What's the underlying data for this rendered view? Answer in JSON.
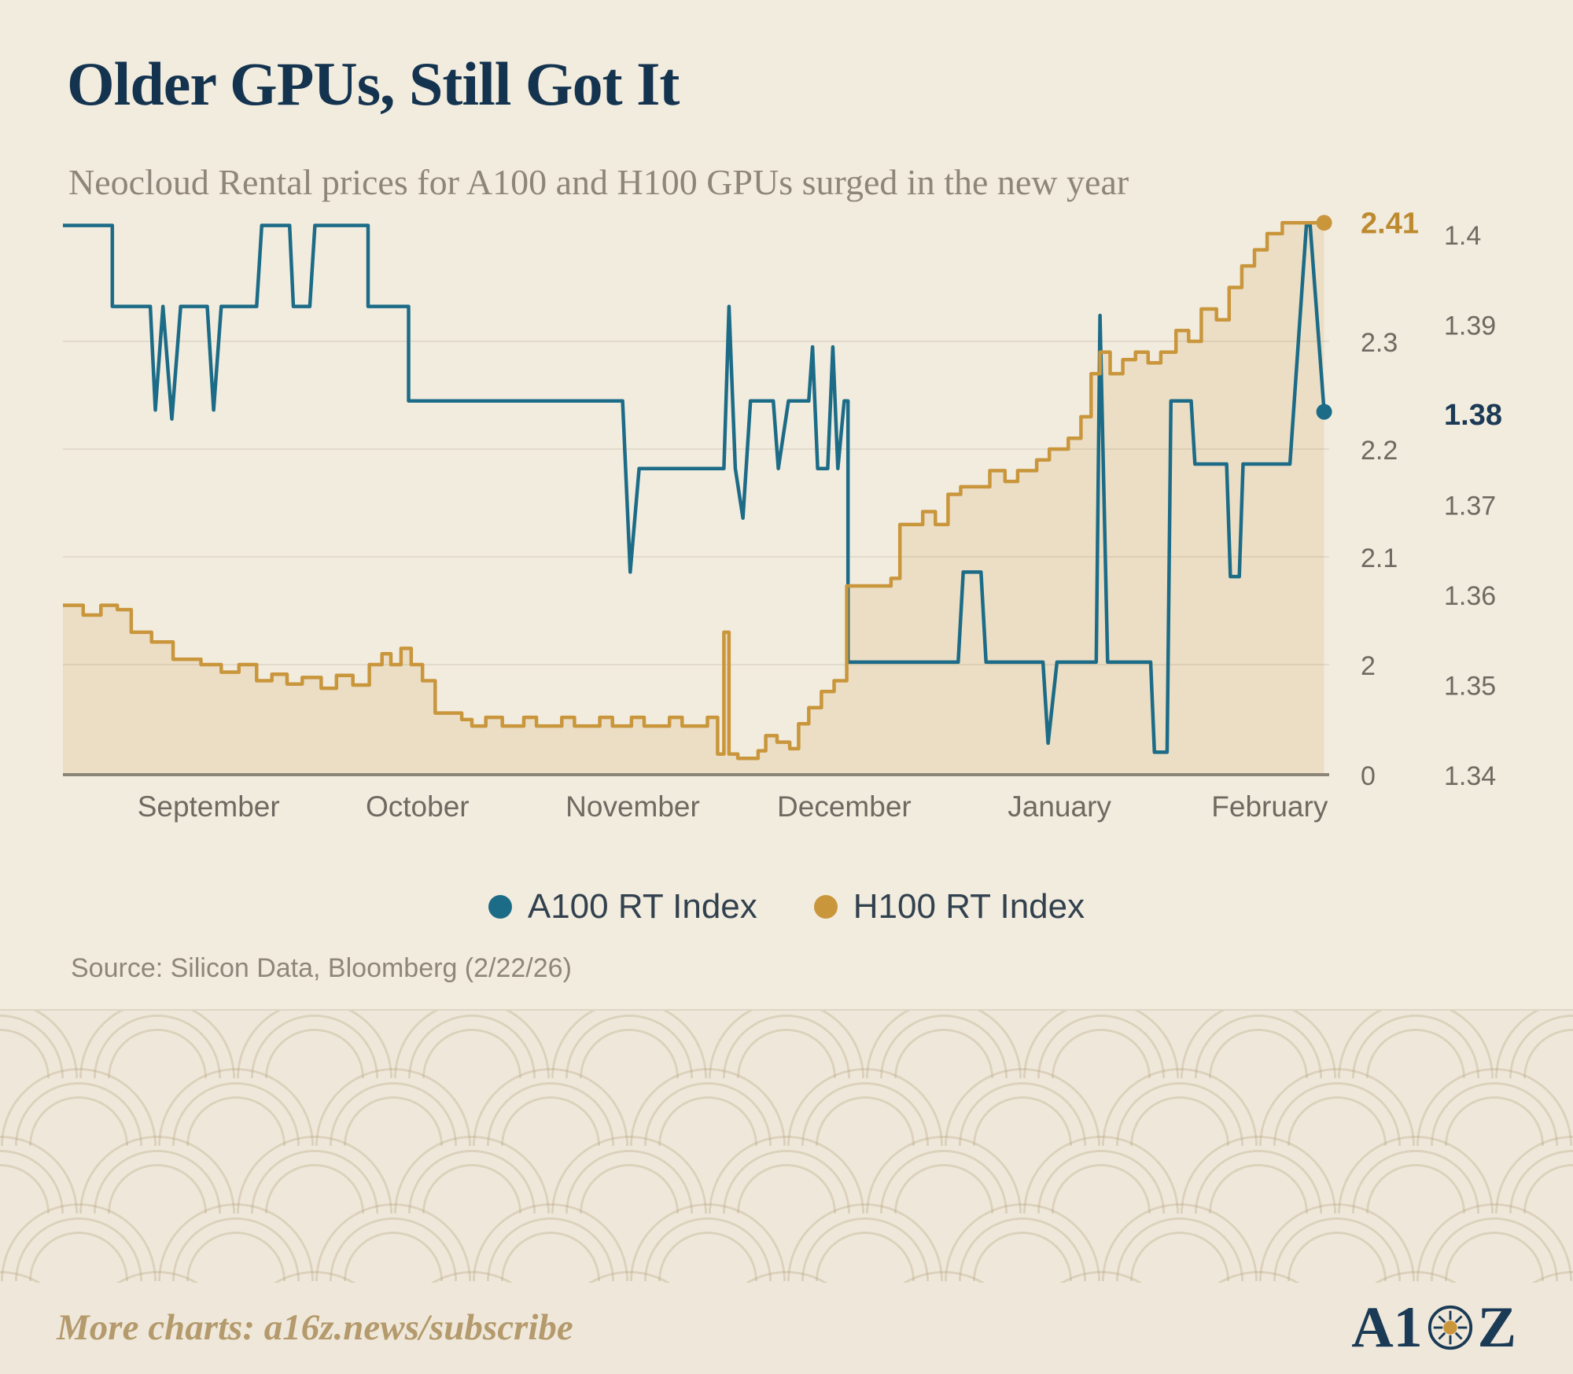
{
  "header": {
    "title": "Older GPUs, Still Got It",
    "subtitle": "Neocloud Rental prices for A100 and H100 GPUs surged in the new year"
  },
  "source": {
    "text": "Source: Silicon Data, Bloomberg (2/22/26)"
  },
  "footer": {
    "cta": "More charts: a16z.news/subscribe",
    "logo": {
      "left": "A1",
      "right": "Z"
    }
  },
  "chart_data": {
    "type": "line",
    "title": "Older GPUs, Still Got It",
    "subtitle": "Neocloud Rental prices for A100 and H100 GPUs surged in the new year",
    "x": {
      "labels": [
        "September",
        "October",
        "November",
        "December",
        "January",
        "February"
      ],
      "positions_pct": [
        11.5,
        28,
        45,
        61.7,
        78.7,
        95.3
      ]
    },
    "axes": {
      "a100": {
        "side": "right-outer",
        "range": [
          1.34,
          1.405
        ],
        "ticks": [
          {
            "v": 1.4,
            "label": "1.4"
          },
          {
            "v": 1.39,
            "label": "1.39"
          },
          {
            "v": 1.38,
            "label": "1.38",
            "highlight": true
          },
          {
            "v": 1.37,
            "label": "1.37"
          },
          {
            "v": 1.36,
            "label": "1.36"
          },
          {
            "v": 1.35,
            "label": "1.35"
          },
          {
            "v": 1.34,
            "label": "1.34"
          }
        ]
      },
      "h100": {
        "side": "right-inner",
        "range": [
          0,
          2.45
        ],
        "ticks": [
          {
            "v": 2.41,
            "label": "2.41",
            "highlight": true
          },
          {
            "v": 2.3,
            "label": "2.3",
            "grid": true
          },
          {
            "v": 2.2,
            "label": "2.2",
            "grid": true
          },
          {
            "v": 2.1,
            "label": "2.1",
            "grid": true
          },
          {
            "v": 2,
            "label": "2",
            "grid": true
          },
          {
            "v": 0,
            "label": "0"
          }
        ]
      }
    },
    "series": [
      {
        "id": "a100",
        "name": "A100 RT Index",
        "color": "#1c6b87",
        "axis": "a100",
        "end_value": 1.38,
        "points": [
          [
            0,
            1.401
          ],
          [
            3.9,
            1.401
          ],
          [
            3.9,
            1.392
          ],
          [
            6.9,
            1.392
          ],
          [
            7.3,
            1.3805
          ],
          [
            7.9,
            1.392
          ],
          [
            8.6,
            1.3795
          ],
          [
            9.3,
            1.392
          ],
          [
            11.4,
            1.392
          ],
          [
            11.9,
            1.3805
          ],
          [
            12.5,
            1.392
          ],
          [
            15.3,
            1.392
          ],
          [
            15.7,
            1.401
          ],
          [
            17.9,
            1.401
          ],
          [
            18.2,
            1.392
          ],
          [
            19.5,
            1.392
          ],
          [
            19.9,
            1.401
          ],
          [
            24.1,
            1.401
          ],
          [
            24.1,
            1.392
          ],
          [
            27.3,
            1.392
          ],
          [
            27.3,
            1.3815
          ],
          [
            44.2,
            1.3815
          ],
          [
            44.8,
            1.3625
          ],
          [
            45.5,
            1.374
          ],
          [
            51.3,
            1.374
          ],
          [
            52.2,
            1.374
          ],
          [
            52.6,
            1.392
          ],
          [
            53.1,
            1.374
          ],
          [
            53.7,
            1.3685
          ],
          [
            54.3,
            1.3815
          ],
          [
            56.1,
            1.3815
          ],
          [
            56.5,
            1.374
          ],
          [
            57.3,
            1.3815
          ],
          [
            58.9,
            1.3815
          ],
          [
            59.2,
            1.3875
          ],
          [
            59.6,
            1.374
          ],
          [
            60.4,
            1.374
          ],
          [
            60.8,
            1.3875
          ],
          [
            61.2,
            1.374
          ],
          [
            61.7,
            1.3815
          ],
          [
            62,
            1.3815
          ],
          [
            62,
            1.3525
          ],
          [
            70.7,
            1.3525
          ],
          [
            71.1,
            1.3625
          ],
          [
            72.5,
            1.3625
          ],
          [
            72.9,
            1.3525
          ],
          [
            77.4,
            1.3525
          ],
          [
            77.8,
            1.3435
          ],
          [
            78.5,
            1.3525
          ],
          [
            81.6,
            1.3525
          ],
          [
            81.9,
            1.391
          ],
          [
            82.5,
            1.3525
          ],
          [
            85.9,
            1.3525
          ],
          [
            86.2,
            1.3425
          ],
          [
            87.2,
            1.3425
          ],
          [
            87.5,
            1.3815
          ],
          [
            89.1,
            1.3815
          ],
          [
            89.4,
            1.3745
          ],
          [
            91.9,
            1.3745
          ],
          [
            92.2,
            1.362
          ],
          [
            92.9,
            1.362
          ],
          [
            93.2,
            1.3745
          ],
          [
            96.9,
            1.3745
          ],
          [
            98.2,
            1.401
          ],
          [
            98.5,
            1.401
          ],
          [
            99.6,
            1.3803
          ]
        ]
      },
      {
        "id": "h100",
        "name": "H100 RT Index",
        "color": "#c9963c",
        "axis": "h100",
        "fill_color": "rgba(201,150,60,0.16)",
        "end_value": 2.41,
        "points": [
          [
            0,
            2.055
          ],
          [
            1.6,
            2.055
          ],
          [
            1.6,
            2.046
          ],
          [
            3,
            2.046
          ],
          [
            3,
            2.055
          ],
          [
            4.3,
            2.055
          ],
          [
            4.3,
            2.051
          ],
          [
            5.4,
            2.051
          ],
          [
            5.4,
            2.03
          ],
          [
            7,
            2.03
          ],
          [
            7,
            2.021
          ],
          [
            8.7,
            2.021
          ],
          [
            8.7,
            2.005
          ],
          [
            10.9,
            2.005
          ],
          [
            10.9,
            2
          ],
          [
            12.5,
            2
          ],
          [
            12.5,
            1.993
          ],
          [
            13.9,
            1.993
          ],
          [
            13.9,
            2
          ],
          [
            15.3,
            2
          ],
          [
            15.3,
            1.985
          ],
          [
            16.5,
            1.985
          ],
          [
            16.5,
            1.991
          ],
          [
            17.7,
            1.991
          ],
          [
            17.7,
            1.982
          ],
          [
            18.9,
            1.982
          ],
          [
            18.9,
            1.988
          ],
          [
            20.4,
            1.988
          ],
          [
            20.4,
            1.978
          ],
          [
            21.6,
            1.978
          ],
          [
            21.6,
            1.99
          ],
          [
            22.9,
            1.99
          ],
          [
            22.9,
            1.981
          ],
          [
            24.2,
            1.981
          ],
          [
            24.2,
            2
          ],
          [
            25.2,
            2
          ],
          [
            25.2,
            2.01
          ],
          [
            25.9,
            2.01
          ],
          [
            25.9,
            2
          ],
          [
            26.7,
            2
          ],
          [
            26.7,
            2.015
          ],
          [
            27.5,
            2.015
          ],
          [
            27.5,
            2
          ],
          [
            28.4,
            2
          ],
          [
            28.4,
            1.985
          ],
          [
            29.4,
            1.985
          ],
          [
            29.4,
            1.955
          ],
          [
            31.5,
            1.955
          ],
          [
            31.5,
            1.949
          ],
          [
            32.3,
            1.949
          ],
          [
            32.3,
            1.943
          ],
          [
            33.4,
            1.943
          ],
          [
            33.4,
            1.951
          ],
          [
            34.7,
            1.951
          ],
          [
            34.7,
            1.943
          ],
          [
            36.4,
            1.943
          ],
          [
            36.4,
            1.951
          ],
          [
            37.4,
            1.951
          ],
          [
            37.4,
            1.943
          ],
          [
            39.4,
            1.943
          ],
          [
            39.4,
            1.951
          ],
          [
            40.4,
            1.951
          ],
          [
            40.4,
            1.943
          ],
          [
            42.4,
            1.943
          ],
          [
            42.4,
            1.951
          ],
          [
            43.4,
            1.951
          ],
          [
            43.4,
            1.943
          ],
          [
            44.9,
            1.943
          ],
          [
            44.9,
            1.951
          ],
          [
            45.9,
            1.951
          ],
          [
            45.9,
            1.943
          ],
          [
            47.9,
            1.943
          ],
          [
            47.9,
            1.951
          ],
          [
            48.9,
            1.951
          ],
          [
            48.9,
            1.943
          ],
          [
            50.9,
            1.943
          ],
          [
            50.9,
            1.951
          ],
          [
            51.7,
            1.951
          ],
          [
            51.7,
            1.917
          ],
          [
            52.2,
            1.917
          ],
          [
            52.2,
            2.03
          ],
          [
            52.6,
            2.03
          ],
          [
            52.6,
            1.917
          ],
          [
            53.3,
            1.917
          ],
          [
            53.3,
            1.913
          ],
          [
            54.9,
            1.913
          ],
          [
            54.9,
            1.92
          ],
          [
            55.5,
            1.92
          ],
          [
            55.5,
            1.934
          ],
          [
            56.4,
            1.934
          ],
          [
            56.4,
            1.928
          ],
          [
            57.4,
            1.928
          ],
          [
            57.4,
            1.922
          ],
          [
            58.1,
            1.922
          ],
          [
            58.1,
            1.945
          ],
          [
            58.9,
            1.945
          ],
          [
            58.9,
            1.96
          ],
          [
            59.9,
            1.96
          ],
          [
            59.9,
            1.975
          ],
          [
            60.9,
            1.975
          ],
          [
            60.9,
            1.985
          ],
          [
            61.9,
            1.985
          ],
          [
            61.9,
            2.073
          ],
          [
            65.4,
            2.073
          ],
          [
            65.4,
            2.08
          ],
          [
            66.1,
            2.08
          ],
          [
            66.1,
            2.13
          ],
          [
            67.9,
            2.13
          ],
          [
            67.9,
            2.142
          ],
          [
            68.9,
            2.142
          ],
          [
            68.9,
            2.13
          ],
          [
            69.9,
            2.13
          ],
          [
            69.9,
            2.158
          ],
          [
            70.9,
            2.158
          ],
          [
            70.9,
            2.165
          ],
          [
            73.2,
            2.165
          ],
          [
            73.2,
            2.18
          ],
          [
            74.4,
            2.18
          ],
          [
            74.4,
            2.17
          ],
          [
            75.4,
            2.17
          ],
          [
            75.4,
            2.18
          ],
          [
            76.9,
            2.18
          ],
          [
            76.9,
            2.19
          ],
          [
            77.9,
            2.19
          ],
          [
            77.9,
            2.2
          ],
          [
            79.4,
            2.2
          ],
          [
            79.4,
            2.21
          ],
          [
            80.4,
            2.21
          ],
          [
            80.4,
            2.23
          ],
          [
            81.2,
            2.23
          ],
          [
            81.2,
            2.27
          ],
          [
            81.9,
            2.27
          ],
          [
            81.9,
            2.29
          ],
          [
            82.7,
            2.29
          ],
          [
            82.7,
            2.27
          ],
          [
            83.7,
            2.27
          ],
          [
            83.7,
            2.283
          ],
          [
            84.7,
            2.283
          ],
          [
            84.7,
            2.29
          ],
          [
            85.7,
            2.29
          ],
          [
            85.7,
            2.28
          ],
          [
            86.7,
            2.28
          ],
          [
            86.7,
            2.29
          ],
          [
            87.9,
            2.29
          ],
          [
            87.9,
            2.31
          ],
          [
            88.9,
            2.31
          ],
          [
            88.9,
            2.3
          ],
          [
            89.9,
            2.3
          ],
          [
            89.9,
            2.33
          ],
          [
            91.1,
            2.33
          ],
          [
            91.1,
            2.32
          ],
          [
            92.1,
            2.32
          ],
          [
            92.1,
            2.35
          ],
          [
            93.1,
            2.35
          ],
          [
            93.1,
            2.37
          ],
          [
            94.1,
            2.37
          ],
          [
            94.1,
            2.385
          ],
          [
            95.1,
            2.385
          ],
          [
            95.1,
            2.4
          ],
          [
            96.3,
            2.4
          ],
          [
            96.3,
            2.41
          ],
          [
            99.6,
            2.41
          ]
        ]
      }
    ]
  }
}
